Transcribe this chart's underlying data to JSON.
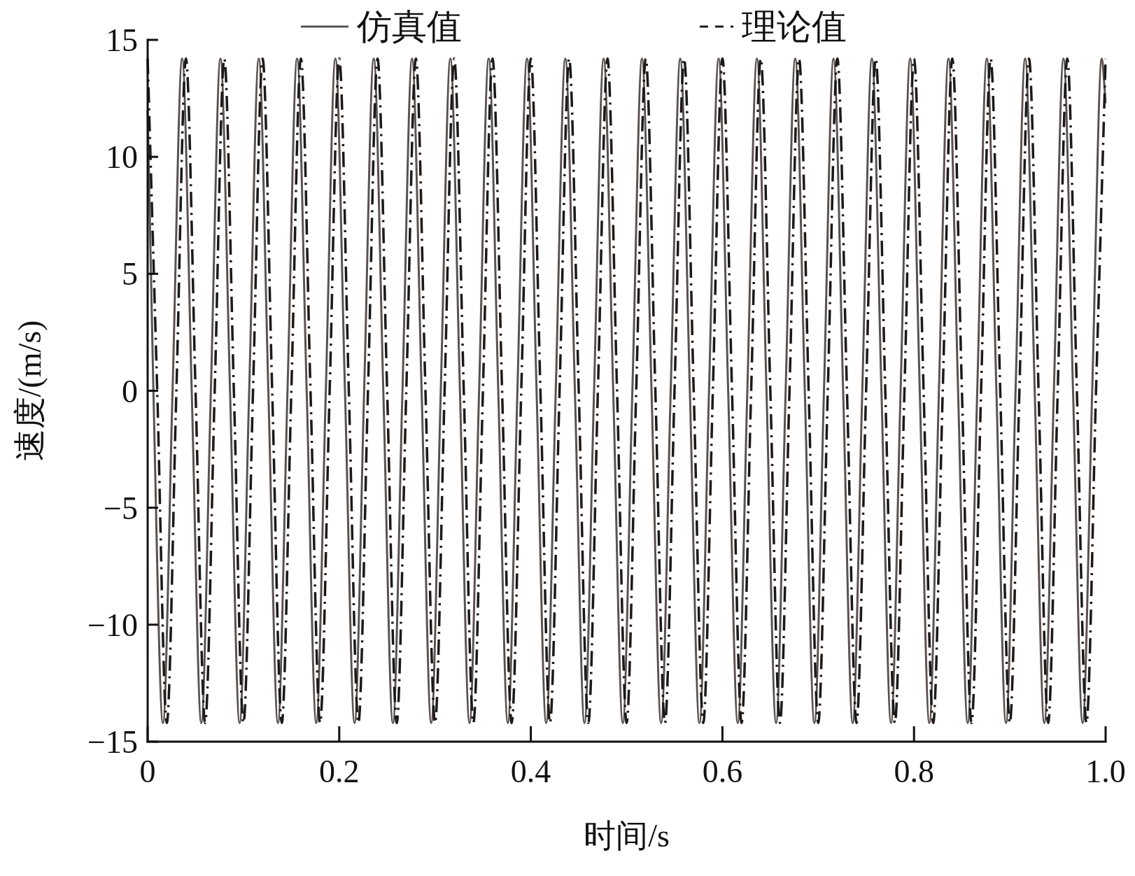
{
  "chart_data": {
    "type": "line",
    "xlabel": "时间/s",
    "ylabel": "速度/(m/s)",
    "xlim": [
      0,
      1
    ],
    "ylim": [
      -15,
      15
    ],
    "xticks": [
      0,
      0.2,
      0.4,
      0.6,
      0.8,
      {
        "value": 1,
        "label": "1.0"
      }
    ],
    "yticks": [
      {
        "value": -15,
        "label": "−15"
      },
      {
        "value": -10,
        "label": "−10"
      },
      {
        "value": -5,
        "label": "−5"
      },
      0,
      5,
      10,
      15
    ],
    "grid": false,
    "legend": "top",
    "series": [
      {
        "name": "仿真值",
        "color": "#5a5250",
        "line_style": "solid",
        "x": [
          0,
          0.006,
          0.016,
          0.026,
          0.036,
          0.046,
          0.056,
          0.066,
          0.076,
          0.086,
          0.096,
          0.106,
          0.116,
          0.126,
          0.136,
          0.146,
          0.156,
          0.166,
          0.176,
          0.186,
          0.196,
          0.206,
          0.216,
          0.226,
          0.236,
          0.246,
          0.256,
          0.266,
          0.276,
          0.286,
          0.296,
          0.306,
          0.316,
          0.326,
          0.336,
          0.346,
          0.356,
          0.366,
          0.376,
          0.386,
          0.396,
          0.406,
          0.416,
          0.426,
          0.436,
          0.446,
          0.456,
          0.466,
          0.476,
          0.486,
          0.496,
          0.506,
          0.516,
          0.526,
          0.536,
          0.546,
          0.556,
          0.566,
          0.576,
          0.586,
          0.596,
          0.606,
          0.616,
          0.626,
          0.636,
          0.646,
          0.656,
          0.666,
          0.676,
          0.686,
          0.696,
          0.706,
          0.716,
          0.726,
          0.736,
          0.746,
          0.756,
          0.766,
          0.776,
          0.786,
          0.796,
          0.806,
          0.816,
          0.826,
          0.836,
          0.846,
          0.856,
          0.866,
          0.876,
          0.886,
          0.896,
          0.906,
          0.916,
          0.926,
          0.936,
          0.946,
          0.956,
          0.966,
          0.976,
          0.986,
          0.996,
          1
        ],
        "values": [
          12,
          0,
          -14.2,
          0,
          14.2,
          0,
          -14.2,
          0,
          14.2,
          0,
          -14.2,
          0,
          14.2,
          0,
          -14.2,
          0,
          14.2,
          0,
          -14.2,
          0,
          14.2,
          0,
          -14.2,
          0,
          14.2,
          0,
          -14.2,
          0,
          14.2,
          0,
          -14.2,
          0,
          14.2,
          0,
          -14.2,
          0,
          14.2,
          0,
          -14.2,
          0,
          14.2,
          0,
          -14.2,
          0,
          14.2,
          0,
          -14.2,
          0,
          14.2,
          0,
          -14.2,
          0,
          14.2,
          0,
          -14.2,
          0,
          14.2,
          0,
          -14.2,
          0,
          14.2,
          0,
          -14.2,
          0,
          14.2,
          0,
          -14.2,
          0,
          14.2,
          0,
          -14.2,
          0,
          14.2,
          0,
          -14.2,
          0,
          14.2,
          0,
          -14.2,
          0,
          14.2,
          0,
          -14.2,
          0,
          14.2,
          0,
          -14.2,
          0,
          14.2,
          0,
          -14.2,
          0,
          14.2,
          0,
          -14.2,
          0,
          14.2,
          0,
          -14.2,
          0,
          14.2,
          12.3
        ]
      },
      {
        "name": "理论值",
        "color": "#1a1a1a",
        "line_style": "dashed",
        "x": [
          0,
          0.01,
          0.02,
          0.03,
          0.04,
          0.05,
          0.06,
          0.07,
          0.08,
          0.09,
          0.1,
          0.11,
          0.12,
          0.13,
          0.14,
          0.15,
          0.16,
          0.17,
          0.18,
          0.19,
          0.2,
          0.21,
          0.22,
          0.23,
          0.24,
          0.25,
          0.26,
          0.27,
          0.28,
          0.29,
          0.3,
          0.31,
          0.32,
          0.33,
          0.34,
          0.35,
          0.36,
          0.37,
          0.38,
          0.39,
          0.4,
          0.41,
          0.42,
          0.43,
          0.44,
          0.45,
          0.46,
          0.47,
          0.48,
          0.49,
          0.5,
          0.51,
          0.52,
          0.53,
          0.54,
          0.55,
          0.56,
          0.57,
          0.58,
          0.59,
          0.6,
          0.61,
          0.62,
          0.63,
          0.64,
          0.65,
          0.66,
          0.67,
          0.68,
          0.69,
          0.7,
          0.71,
          0.72,
          0.73,
          0.74,
          0.75,
          0.76,
          0.77,
          0.78,
          0.79,
          0.8,
          0.81,
          0.82,
          0.83,
          0.84,
          0.85,
          0.86,
          0.87,
          0.88,
          0.89,
          0.9,
          0.91,
          0.92,
          0.93,
          0.94,
          0.95,
          0.96,
          0.97,
          0.98,
          0.99,
          1
        ],
        "values": [
          14.2,
          0,
          -14.2,
          0,
          14.2,
          0,
          -14.2,
          0,
          14.2,
          0,
          -14.2,
          0,
          14.2,
          0,
          -14.2,
          0,
          14.2,
          0,
          -14.2,
          0,
          14.2,
          0,
          -14.2,
          0,
          14.2,
          0,
          -14.2,
          0,
          14.2,
          0,
          -14.2,
          0,
          14.2,
          0,
          -14.2,
          0,
          14.2,
          0,
          -14.2,
          0,
          14.2,
          0,
          -14.2,
          0,
          14.2,
          0,
          -14.2,
          0,
          14.2,
          0,
          -14.2,
          0,
          14.2,
          0,
          -14.2,
          0,
          14.2,
          0,
          -14.2,
          0,
          14.2,
          0,
          -14.2,
          0,
          14.2,
          0,
          -14.2,
          0,
          14.2,
          0,
          -14.2,
          0,
          14.2,
          0,
          -14.2,
          0,
          14.2,
          0,
          -14.2,
          0,
          14.2,
          0,
          -14.2,
          0,
          14.2,
          0,
          -14.2,
          0,
          14.2,
          0,
          -14.2,
          0,
          14.2,
          0,
          -14.2,
          0,
          14.2,
          0,
          -14.2,
          0,
          14.2
        ]
      }
    ]
  }
}
